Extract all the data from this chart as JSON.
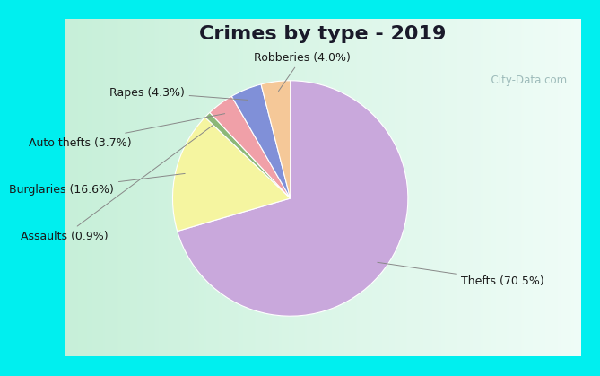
{
  "title": "Crimes by type - 2019",
  "slices": [
    {
      "label": "Thefts (70.5%)",
      "value": 70.5,
      "color": "#C9A8DC"
    },
    {
      "label": "Burglaries (16.6%)",
      "value": 16.6,
      "color": "#F5F5A0"
    },
    {
      "label": "Assaults (0.9%)",
      "value": 0.9,
      "color": "#8CB878"
    },
    {
      "label": "Auto thefts (3.7%)",
      "value": 3.7,
      "color": "#F0A0A8"
    },
    {
      "label": "Rapes (4.3%)",
      "value": 4.3,
      "color": "#8090D8"
    },
    {
      "label": "Robberies (4.0%)",
      "value": 4.0,
      "color": "#F5C898"
    }
  ],
  "bg_outer": "#00EFEF",
  "bg_inner_left": "#C8EED8",
  "bg_inner_right": "#F0FAF8",
  "title_fontsize": 16,
  "label_fontsize": 9,
  "watermark": "  City-Data.com",
  "border_width": 12
}
